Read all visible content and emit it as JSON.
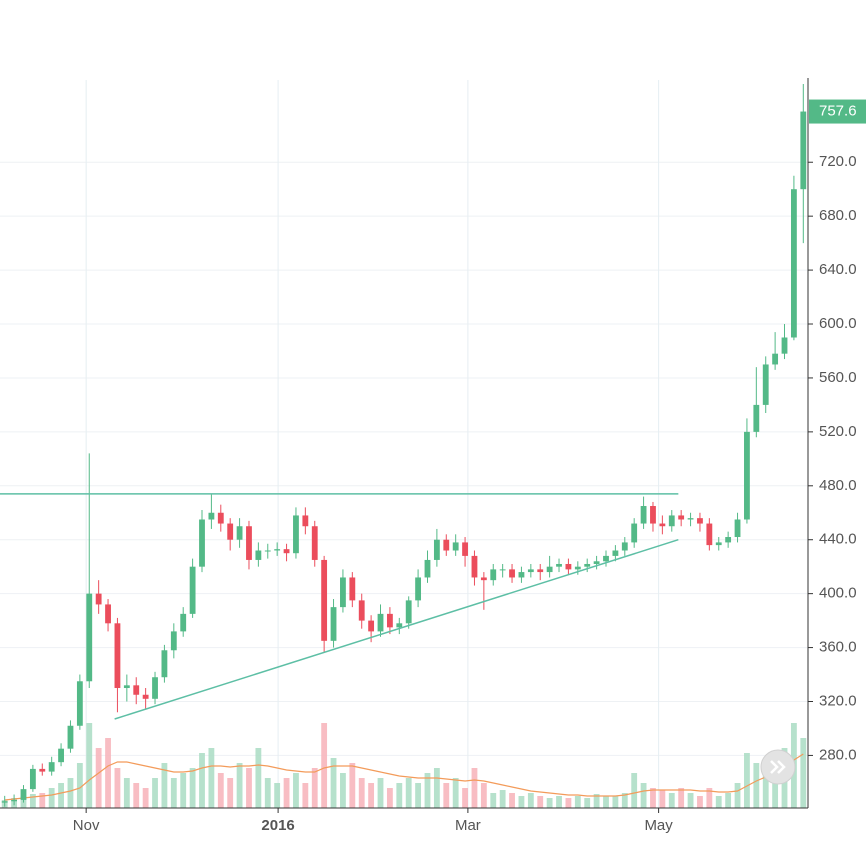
{
  "chart_data": {
    "type": "candlestick",
    "open": [
      245,
      246,
      247,
      255,
      270,
      268,
      275,
      285,
      302,
      335,
      400,
      392,
      378,
      330,
      332,
      325,
      322,
      338,
      358,
      372,
      385,
      420,
      455,
      460,
      452,
      440,
      450,
      425,
      432,
      432,
      433,
      430,
      458,
      450,
      425,
      365,
      390,
      412,
      395,
      380,
      372,
      385,
      375,
      378,
      395,
      412,
      425,
      440,
      432,
      438,
      428,
      412,
      410,
      418,
      418,
      412,
      416,
      418,
      416,
      420,
      422,
      418,
      420,
      422,
      424,
      428,
      432,
      438,
      452,
      465,
      452,
      450,
      458,
      455,
      456,
      452,
      436,
      438,
      442,
      455,
      520,
      540,
      570,
      578,
      590,
      700
    ],
    "high": [
      250,
      251,
      258,
      273,
      274,
      279,
      289,
      306,
      340,
      504,
      410,
      396,
      382,
      340,
      338,
      330,
      342,
      362,
      378,
      390,
      426,
      462,
      474,
      466,
      456,
      456,
      454,
      438,
      437,
      438,
      437,
      464,
      464,
      454,
      428,
      396,
      418,
      416,
      400,
      384,
      392,
      390,
      382,
      398,
      418,
      432,
      448,
      444,
      444,
      442,
      432,
      416,
      422,
      422,
      422,
      420,
      422,
      422,
      428,
      426,
      426,
      424,
      426,
      428,
      432,
      436,
      442,
      456,
      472,
      468,
      458,
      462,
      462,
      460,
      460,
      456,
      442,
      446,
      460,
      530,
      568,
      576,
      594,
      600,
      710,
      778
    ],
    "low": [
      242,
      243,
      245,
      253,
      265,
      265,
      272,
      282,
      299,
      330,
      385,
      372,
      312,
      320,
      318,
      314,
      318,
      334,
      352,
      368,
      382,
      416,
      448,
      446,
      432,
      434,
      418,
      420,
      426,
      428,
      424,
      426,
      444,
      420,
      356,
      360,
      386,
      390,
      374,
      364,
      368,
      370,
      370,
      374,
      390,
      408,
      420,
      428,
      428,
      420,
      406,
      388,
      406,
      412,
      408,
      408,
      412,
      410,
      412,
      416,
      414,
      414,
      416,
      418,
      420,
      424,
      428,
      434,
      448,
      446,
      444,
      446,
      450,
      450,
      446,
      432,
      432,
      434,
      438,
      452,
      516,
      534,
      566,
      574,
      588,
      660
    ],
    "close": [
      246,
      247,
      255,
      270,
      268,
      275,
      285,
      302,
      335,
      400,
      392,
      378,
      330,
      332,
      325,
      322,
      338,
      358,
      372,
      385,
      420,
      455,
      460,
      452,
      440,
      450,
      425,
      432,
      432,
      433,
      430,
      458,
      450,
      425,
      365,
      390,
      412,
      395,
      380,
      372,
      385,
      375,
      378,
      395,
      412,
      425,
      440,
      432,
      438,
      428,
      412,
      410,
      418,
      418,
      412,
      416,
      418,
      416,
      420,
      422,
      418,
      420,
      422,
      424,
      428,
      432,
      438,
      452,
      465,
      452,
      450,
      458,
      455,
      456,
      452,
      436,
      438,
      442,
      455,
      520,
      540,
      570,
      578,
      590,
      700,
      757.6
    ],
    "volume": [
      8,
      10,
      12,
      14,
      15,
      20,
      25,
      30,
      45,
      85,
      60,
      70,
      40,
      30,
      25,
      20,
      30,
      45,
      30,
      35,
      40,
      55,
      60,
      35,
      30,
      45,
      40,
      60,
      30,
      25,
      30,
      35,
      25,
      40,
      85,
      50,
      35,
      45,
      30,
      25,
      30,
      20,
      25,
      30,
      25,
      35,
      40,
      25,
      30,
      20,
      40,
      25,
      15,
      18,
      15,
      12,
      15,
      12,
      10,
      12,
      10,
      12,
      10,
      14,
      12,
      12,
      15,
      35,
      25,
      20,
      18,
      15,
      20,
      15,
      12,
      20,
      12,
      15,
      25,
      55,
      45,
      40,
      50,
      60,
      85,
      70
    ],
    "volume_ma": [
      8,
      9,
      10,
      11,
      12,
      13,
      15,
      17,
      20,
      28,
      35,
      42,
      46,
      46,
      44,
      42,
      40,
      38,
      36,
      36,
      37,
      40,
      42,
      42,
      41,
      42,
      42,
      43,
      42,
      40,
      38,
      37,
      36,
      36,
      40,
      42,
      42,
      42,
      40,
      38,
      36,
      34,
      32,
      31,
      30,
      30,
      30,
      29,
      28,
      27,
      28,
      27,
      25,
      23,
      21,
      19,
      17,
      16,
      15,
      14,
      13,
      13,
      12,
      12,
      12,
      12,
      13,
      15,
      17,
      18,
      18,
      18,
      18,
      18,
      17,
      17,
      16,
      16,
      17,
      22,
      27,
      31,
      35,
      40,
      48,
      54
    ],
    "up_color": "#53b987",
    "down_color": "#eb4d5c",
    "volume_up_color": "#a9dcc3",
    "volume_down_color": "#f7b1b8",
    "volume_ma_color": "#f39b5a",
    "trendline_color": "#5dbfa5",
    "trendlines": [
      {
        "x": [
          -0.5,
          71.7
        ],
        "y": [
          474,
          474
        ]
      },
      {
        "x": [
          11.7,
          71.7
        ],
        "y": [
          307,
          440
        ]
      }
    ],
    "xlim": [
      -0.5,
      85.5
    ],
    "xticks": [
      {
        "value": 8.67,
        "label": "Nov"
      },
      {
        "value": 29.1,
        "label": "2016"
      },
      {
        "value": 49.3,
        "label": "Mar"
      },
      {
        "value": 69.6,
        "label": "May"
      }
    ],
    "ylim": [
      241,
      781
    ],
    "yticks": [
      {
        "value": 280,
        "label": "280.0"
      },
      {
        "value": 320,
        "label": "320.0"
      },
      {
        "value": 360,
        "label": "360.0"
      },
      {
        "value": 400,
        "label": "400.0"
      },
      {
        "value": 440,
        "label": "440.0"
      },
      {
        "value": 480,
        "label": "480.0"
      },
      {
        "value": 520,
        "label": "520.0"
      },
      {
        "value": 560,
        "label": "560.0"
      },
      {
        "value": 600,
        "label": "600.0"
      },
      {
        "value": 640,
        "label": "640.0"
      },
      {
        "value": 680,
        "label": "680.0"
      },
      {
        "value": 720,
        "label": "720.0"
      }
    ],
    "grid": true
  }
}
